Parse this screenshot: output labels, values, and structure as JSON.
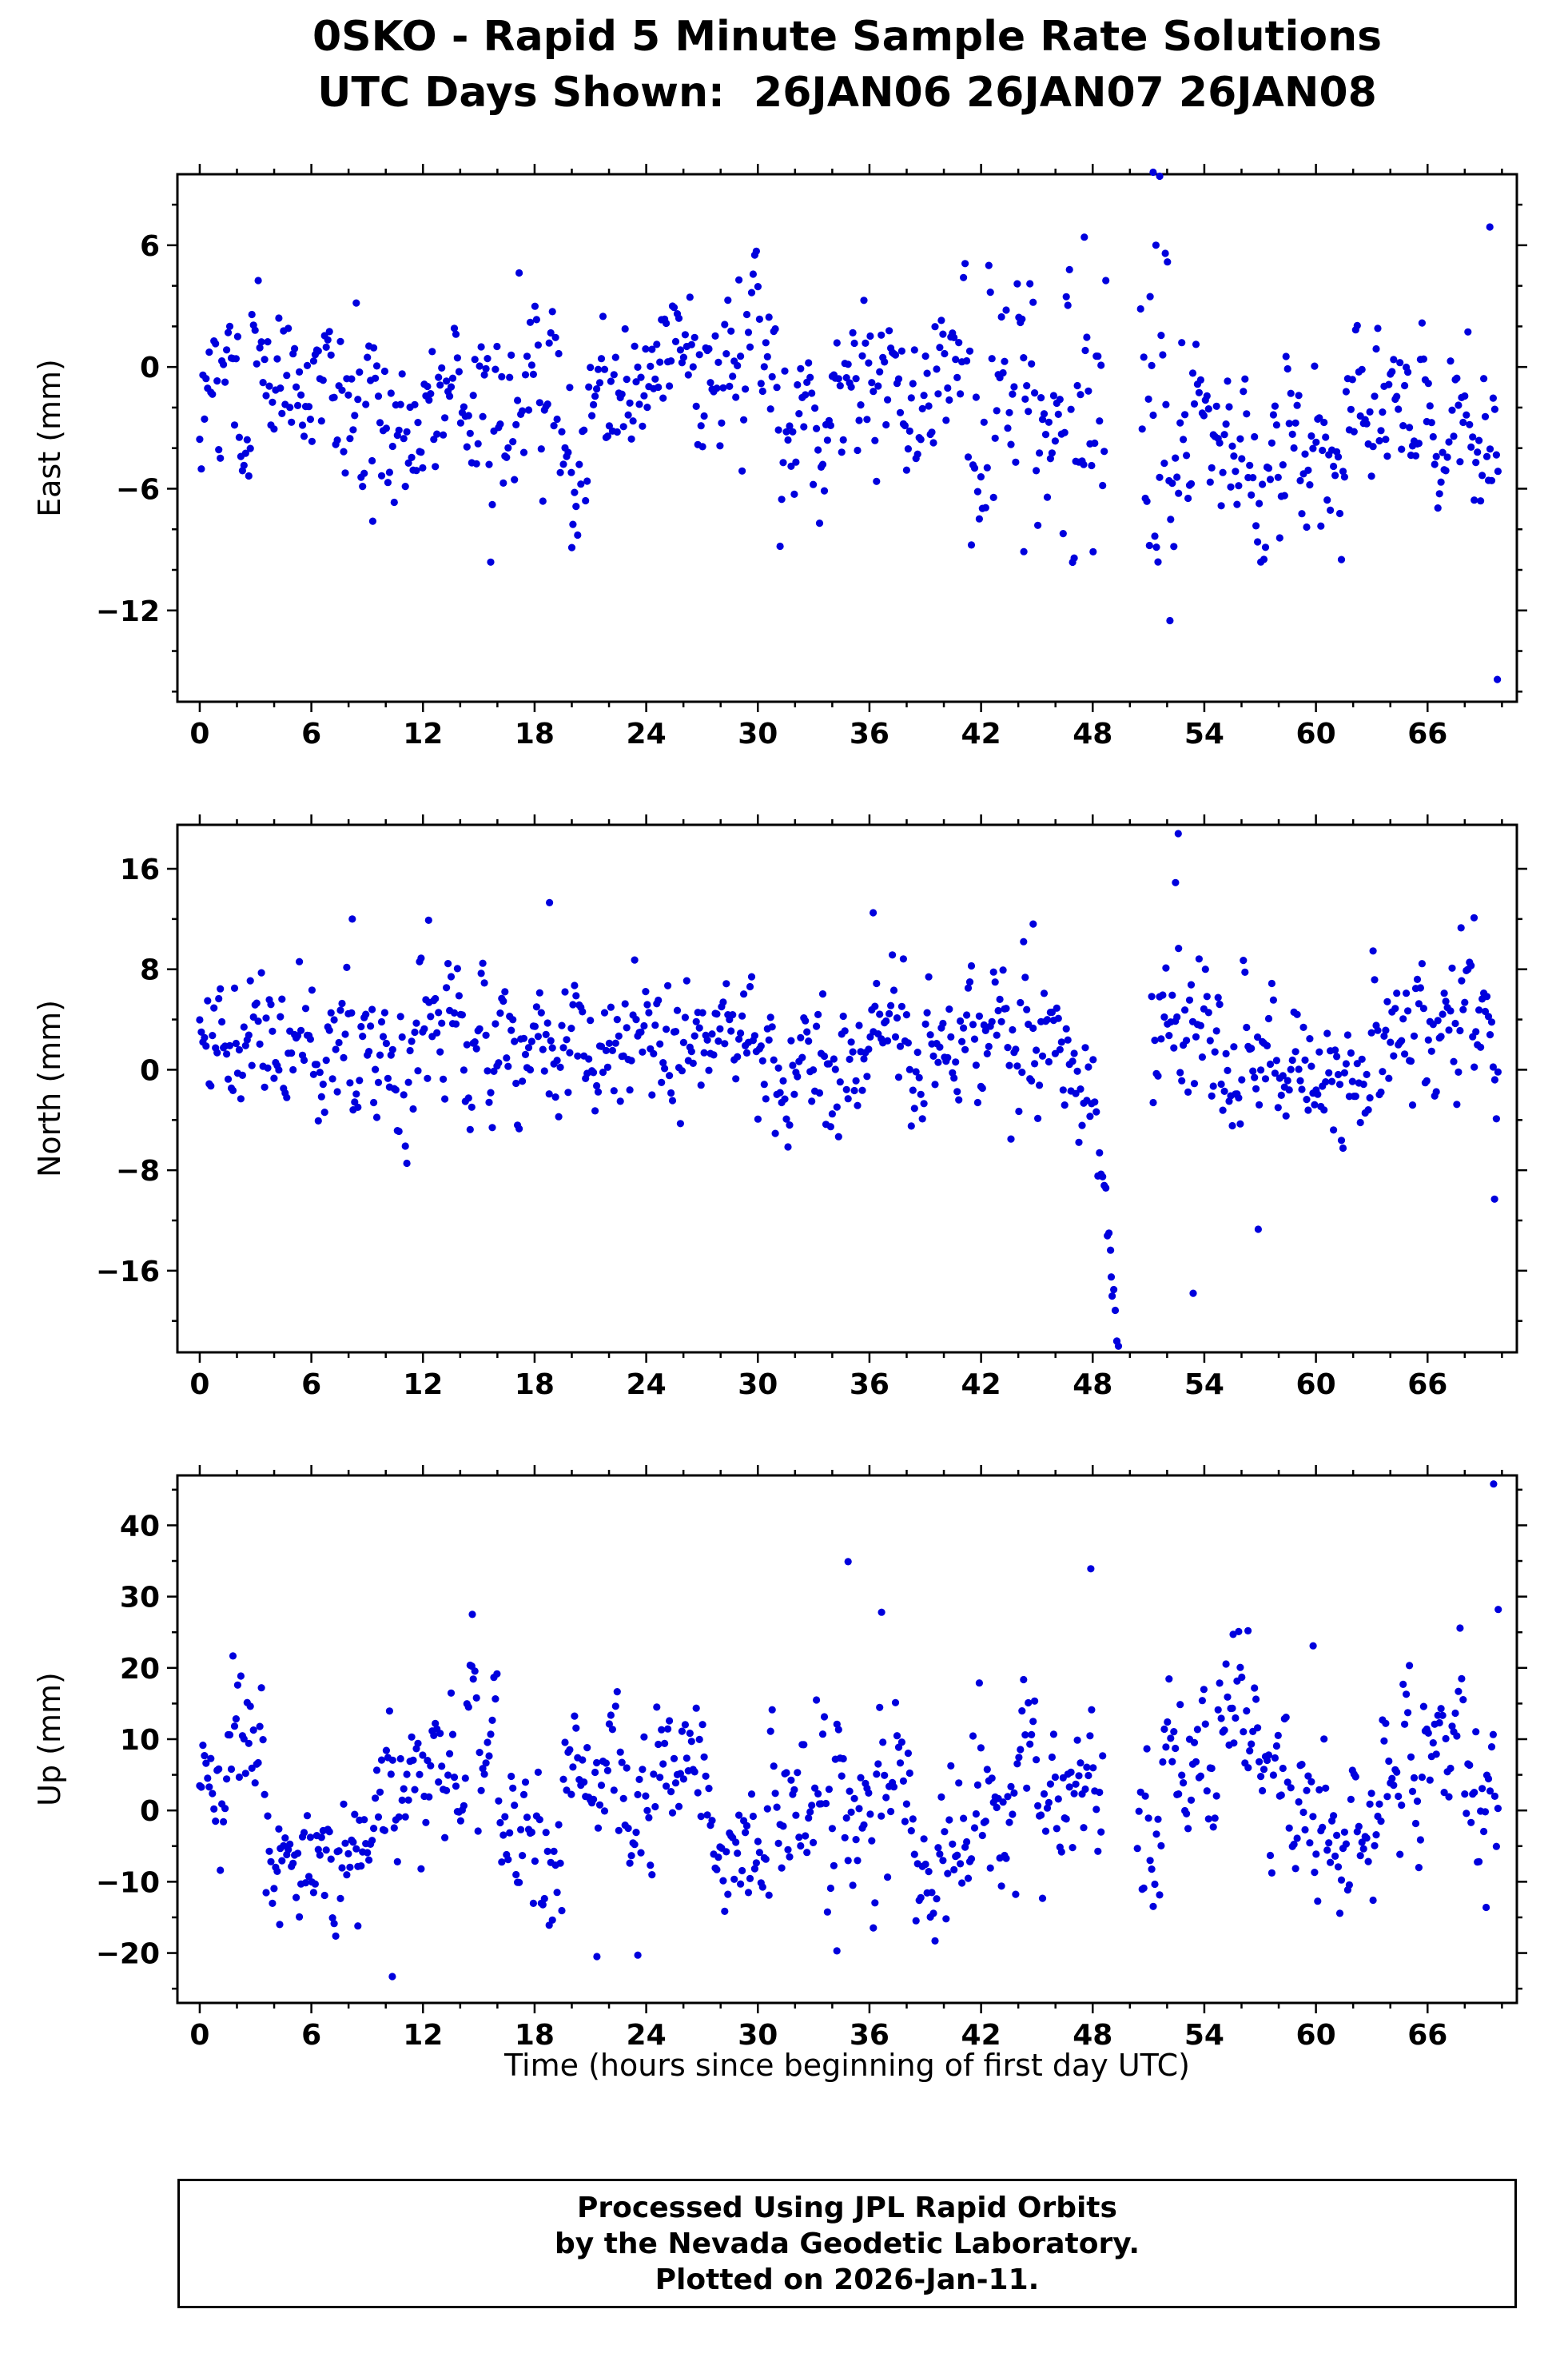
{
  "chart_data": {
    "type": "scatter",
    "title": "0SKO - Rapid 5 Minute Sample Rate Solutions",
    "subtitle": "UTC Days Shown:  26JAN06 26JAN07 26JAN08",
    "xlabel": "Time (hours since beginning of first day UTC)",
    "marker_color": "#0000dd",
    "frame_color": "#000000",
    "seed": 20260111,
    "x": {
      "min": -1.2,
      "max": 70.8,
      "ticks": [
        0,
        6,
        12,
        18,
        24,
        30,
        36,
        42,
        48,
        54,
        60,
        66
      ],
      "minor_step": 2,
      "data_range": [
        0,
        69.8
      ],
      "sample_step_hours": 0.085
    },
    "panels": [
      {
        "id": "east",
        "ylabel": "East (mm)",
        "ylim": [
          -16.5,
          9.5
        ],
        "yticks": [
          -12,
          -6,
          0,
          6
        ],
        "minor_step": 2,
        "clamp": [
          -9.8,
          6.6
        ],
        "gaps": [
          [
            48.75,
            50.55
          ]
        ],
        "segments": [
          {
            "t": [
              0,
              8
            ],
            "mean": -1.2,
            "sd": 2.2
          },
          {
            "t": [
              8,
              12
            ],
            "mean": -2.8,
            "sd": 2.4
          },
          {
            "t": [
              12,
              19
            ],
            "mean": -1.8,
            "sd": 2.2
          },
          {
            "t": [
              19,
              21
            ],
            "mean": -3.0,
            "sd": 2.6
          },
          {
            "t": [
              21,
              26
            ],
            "mean": -0.8,
            "sd": 2.0
          },
          {
            "t": [
              26,
              31
            ],
            "mean": 0.2,
            "sd": 2.0
          },
          {
            "t": [
              31,
              35
            ],
            "mean": -2.2,
            "sd": 2.2
          },
          {
            "t": [
              35,
              41
            ],
            "mean": -0.8,
            "sd": 2.0
          },
          {
            "t": [
              41,
              44
            ],
            "mean": -2.5,
            "sd": 3.2
          },
          {
            "t": [
              44,
              46.5
            ],
            "mean": -2.0,
            "sd": 3.0
          },
          {
            "t": [
              46.5,
              48.75
            ],
            "mean": -0.5,
            "sd": 3.8
          },
          {
            "t": [
              50.55,
              53.2
            ],
            "mean": -2.0,
            "sd": 4.0
          },
          {
            "t": [
              53.2,
              58.5
            ],
            "mean": -4.6,
            "sd": 2.2
          },
          {
            "t": [
              58.5,
              63
            ],
            "mean": -3.0,
            "sd": 2.2
          },
          {
            "t": [
              63,
              67
            ],
            "mean": -2.2,
            "sd": 2.2
          },
          {
            "t": [
              67,
              69.9
            ],
            "mean": -3.0,
            "sd": 2.6
          }
        ],
        "outliers": [
          [
            51.25,
            9.6
          ],
          [
            51.6,
            9.4
          ],
          [
            51.4,
            6.0
          ],
          [
            51.9,
            5.6
          ],
          [
            52.15,
            -12.5
          ],
          [
            69.35,
            6.9
          ],
          [
            69.75,
            -15.4
          ],
          [
            47.55,
            6.4
          ],
          [
            44.3,
            -9.1
          ],
          [
            51.05,
            -8.8
          ],
          [
            20.0,
            -8.9
          ],
          [
            9.3,
            -7.6
          ]
        ]
      },
      {
        "id": "north",
        "ylabel": "North (mm)",
        "ylim": [
          -22.5,
          19.5
        ],
        "yticks": [
          -16,
          -8,
          0,
          8,
          16
        ],
        "minor_step": 4,
        "clamp": [
          -9.2,
          13.0
        ],
        "gaps": [
          [
            49.45,
            51.15
          ]
        ],
        "segments": [
          {
            "t": [
              0,
              7
            ],
            "mean": 1.8,
            "sd": 2.6
          },
          {
            "t": [
              7,
              9
            ],
            "mean": 3.0,
            "sd": 3.2
          },
          {
            "t": [
              9,
              11.5
            ],
            "mean": -1.0,
            "sd": 3.2
          },
          {
            "t": [
              11.5,
              14
            ],
            "mean": 3.5,
            "sd": 3.4
          },
          {
            "t": [
              14,
              16
            ],
            "mean": 2.0,
            "sd": 3.2
          },
          {
            "t": [
              16,
              18
            ],
            "mean": 0.5,
            "sd": 3.0
          },
          {
            "t": [
              18,
              20.5
            ],
            "mean": 3.8,
            "sd": 3.0
          },
          {
            "t": [
              20.5,
              24
            ],
            "mean": 2.2,
            "sd": 2.8
          },
          {
            "t": [
              24,
              26
            ],
            "mean": 0.8,
            "sd": 2.8
          },
          {
            "t": [
              26,
              29
            ],
            "mean": 2.5,
            "sd": 2.4
          },
          {
            "t": [
              29,
              33
            ],
            "mean": 1.5,
            "sd": 2.6
          },
          {
            "t": [
              33,
              36
            ],
            "mean": 0.5,
            "sd": 3.0
          },
          {
            "t": [
              36,
              38
            ],
            "mean": 2.5,
            "sd": 3.0
          },
          {
            "t": [
              38,
              41
            ],
            "mean": 1.0,
            "sd": 2.6
          },
          {
            "t": [
              41,
              44
            ],
            "mean": 2.5,
            "sd": 3.0
          },
          {
            "t": [
              44,
              47.2
            ],
            "mean": 0.8,
            "sd": 3.4
          },
          {
            "t": [
              47.2,
              48.3
            ],
            "mean": -2.5,
            "sd": 2.5
          },
          {
            "t": [
              48.3,
              49.45
            ],
            "mean": -6,
            "mean2": -20.5,
            "sd": 1.6
          },
          {
            "t": [
              51.15,
              54
            ],
            "mean": 2.2,
            "sd": 3.8
          },
          {
            "t": [
              54,
              57
            ],
            "mean": 0.5,
            "sd": 3.4
          },
          {
            "t": [
              57,
              60
            ],
            "mean": -0.5,
            "sd": 3.2
          },
          {
            "t": [
              60,
              63
            ],
            "mean": 0.8,
            "sd": 3.0
          },
          {
            "t": [
              63,
              66
            ],
            "mean": 2.5,
            "sd": 3.0
          },
          {
            "t": [
              66,
              68.5
            ],
            "mean": 3.5,
            "sd": 3.2
          },
          {
            "t": [
              68.5,
              69.9
            ],
            "mean": 0.5,
            "sd": 3.4
          }
        ],
        "outliers": [
          [
            52.6,
            18.8
          ],
          [
            52.45,
            14.9
          ],
          [
            56.9,
            -12.7
          ],
          [
            69.6,
            -10.3
          ],
          [
            18.8,
            13.3
          ],
          [
            12.3,
            11.9
          ],
          [
            8.2,
            12.0
          ],
          [
            36.2,
            12.5
          ],
          [
            44.8,
            11.6
          ],
          [
            68.5,
            12.1
          ],
          [
            67.8,
            11.3
          ],
          [
            49.0,
            -16.5
          ],
          [
            49.3,
            -21.6
          ],
          [
            53.4,
            -17.8
          ]
        ]
      },
      {
        "id": "up",
        "ylabel": "Up (mm)",
        "ylim": [
          -27,
          47
        ],
        "yticks": [
          -20,
          -10,
          0,
          10,
          20,
          30,
          40
        ],
        "minor_step": 5,
        "clamp": [
          -18.5,
          26
        ],
        "gaps": [
          [
            48.6,
            50.35
          ]
        ],
        "segments": [
          {
            "t": [
              0,
              3.5
            ],
            "mean": 8,
            "sd": 5
          },
          {
            "t": [
              3.5,
              6
            ],
            "mean": -5,
            "sd": 5
          },
          {
            "t": [
              6,
              9.5
            ],
            "mean": -7,
            "sd": 4.5
          },
          {
            "t": [
              9.5,
              12
            ],
            "mean": 2,
            "sd": 6
          },
          {
            "t": [
              12,
              16
            ],
            "mean": 7,
            "sd": 7
          },
          {
            "t": [
              16,
              19.5
            ],
            "mean": -6,
            "sd": 5.5
          },
          {
            "t": [
              19.5,
              22.5
            ],
            "mean": 3,
            "sd": 7
          },
          {
            "t": [
              22.5,
              24.5
            ],
            "mean": -2,
            "sd": 7
          },
          {
            "t": [
              24.5,
              27.5
            ],
            "mean": 8,
            "sd": 6
          },
          {
            "t": [
              27.5,
              30
            ],
            "mean": -4,
            "sd": 5.5
          },
          {
            "t": [
              30,
              33
            ],
            "mean": -1,
            "sd": 5.5
          },
          {
            "t": [
              33,
              36
            ],
            "mean": 3,
            "sd": 8
          },
          {
            "t": [
              36,
              38.5
            ],
            "mean": 6,
            "sd": 8
          },
          {
            "t": [
              38.5,
              41.5
            ],
            "mean": -5,
            "sd": 6
          },
          {
            "t": [
              41.5,
              44
            ],
            "mean": 2,
            "sd": 7
          },
          {
            "t": [
              44,
              48.6
            ],
            "mean": 4,
            "sd": 7
          },
          {
            "t": [
              50.35,
              51.7
            ],
            "mean": -1,
            "sd": 7
          },
          {
            "t": [
              51.7,
              53
            ],
            "mean": 9,
            "sd": 6
          },
          {
            "t": [
              53,
              56.5
            ],
            "mean": 12,
            "sd": 6
          },
          {
            "t": [
              56.5,
              58.5
            ],
            "mean": 8,
            "sd": 6
          },
          {
            "t": [
              58.5,
              60.5
            ],
            "mean": 0,
            "sd": 6
          },
          {
            "t": [
              60.5,
              63.5
            ],
            "mean": -6,
            "sd": 5.5
          },
          {
            "t": [
              63.5,
              66
            ],
            "mean": 6,
            "sd": 6
          },
          {
            "t": [
              66,
              68
            ],
            "mean": 9,
            "sd": 5.5
          },
          {
            "t": [
              68,
              69.9
            ],
            "mean": 4,
            "sd": 7
          }
        ],
        "outliers": [
          [
            34.85,
            34.9
          ],
          [
            47.9,
            33.9
          ],
          [
            69.55,
            45.8
          ],
          [
            10.35,
            -23.3
          ],
          [
            14.65,
            27.5
          ],
          [
            36.65,
            27.8
          ],
          [
            56.35,
            25.2
          ],
          [
            55.55,
            24.7
          ],
          [
            21.35,
            -20.5
          ],
          [
            23.55,
            -20.3
          ],
          [
            34.25,
            -19.7
          ],
          [
            69.15,
            -13.6
          ],
          [
            59.85,
            23.1
          ],
          [
            8.5,
            -16.2
          ],
          [
            4.3,
            -16.0
          ],
          [
            69.8,
            28.2
          ]
        ]
      }
    ]
  },
  "footer": {
    "line1": "Processed Using JPL Rapid Orbits",
    "line2": "by the Nevada Geodetic Laboratory.",
    "line3": "Plotted on 2026-Jan-11."
  }
}
